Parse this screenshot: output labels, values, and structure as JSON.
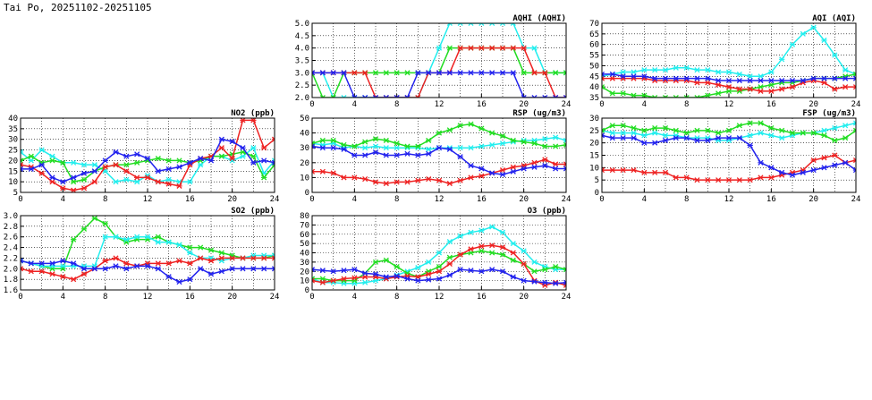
{
  "page": {
    "title": "Tai Po, 20251102-20251105"
  },
  "colors": {
    "red": "#ee2222",
    "green": "#22dd22",
    "blue": "#2222ee",
    "cyan": "#22eeee",
    "grid": "#000000"
  },
  "chart_data": [
    {
      "id": "aqhi",
      "type": "line",
      "title": "AQHI (AQHI)",
      "xlim": [
        0,
        24
      ],
      "ylim": [
        2,
        5
      ],
      "xticks": [
        "0",
        "4",
        "8",
        "12",
        "16",
        "20",
        "24"
      ],
      "yticks": [
        "2.0",
        "2.5",
        "3.0",
        "3.5",
        "4.0",
        "4.5",
        "5.0"
      ],
      "series": [
        {
          "color": "#22eeee",
          "values": [
            3,
            3,
            2,
            2,
            2,
            2,
            2,
            2,
            2,
            2,
            2,
            3,
            4,
            5,
            5,
            5,
            5,
            5,
            5,
            5,
            4,
            4,
            3,
            3,
            3
          ]
        },
        {
          "color": "#22dd22",
          "values": [
            3,
            2,
            2,
            3,
            3,
            3,
            3,
            3,
            3,
            3,
            3,
            3,
            3,
            4,
            4,
            4,
            4,
            4,
            4,
            4,
            3,
            3,
            3,
            3,
            3
          ]
        },
        {
          "color": "#ee2222",
          "values": [
            3,
            3,
            3,
            3,
            3,
            3,
            2,
            2,
            2,
            2,
            2,
            3,
            3,
            3,
            4,
            4,
            4,
            4,
            4,
            4,
            4,
            3,
            3,
            2,
            2
          ]
        },
        {
          "color": "#2222ee",
          "values": [
            3,
            3,
            3,
            3,
            2,
            2,
            2,
            2,
            2,
            2,
            3,
            3,
            3,
            3,
            3,
            3,
            3,
            3,
            3,
            3,
            2,
            2,
            2,
            2,
            2
          ]
        }
      ]
    },
    {
      "id": "aqi",
      "type": "line",
      "title": "AQI (AQI)",
      "xlim": [
        0,
        24
      ],
      "ylim": [
        35,
        70
      ],
      "xticks": [
        "0",
        "4",
        "8",
        "12",
        "16",
        "20",
        "24"
      ],
      "yticks": [
        "35",
        "40",
        "45",
        "50",
        "55",
        "60",
        "65",
        "70"
      ],
      "series": [
        {
          "color": "#22eeee",
          "values": [
            45,
            46,
            47,
            47,
            48,
            48,
            48,
            49,
            49,
            48,
            48,
            47,
            47,
            46,
            45,
            45,
            47,
            53,
            60,
            65,
            68,
            62,
            55,
            48,
            46
          ]
        },
        {
          "color": "#22dd22",
          "values": [
            40,
            37,
            37,
            36,
            36,
            35,
            35,
            35,
            35,
            35,
            36,
            37,
            38,
            38,
            39,
            40,
            41,
            42,
            42,
            43,
            44,
            44,
            44,
            45,
            46
          ]
        },
        {
          "color": "#ee2222",
          "values": [
            44,
            44,
            44,
            44,
            44,
            43,
            43,
            43,
            43,
            42,
            42,
            41,
            40,
            39,
            39,
            38,
            38,
            39,
            40,
            42,
            43,
            42,
            39,
            40,
            40
          ]
        },
        {
          "color": "#2222ee",
          "values": [
            46,
            46,
            45,
            45,
            45,
            44,
            44,
            44,
            44,
            44,
            44,
            43,
            43,
            43,
            43,
            43,
            43,
            43,
            43,
            43,
            44,
            44,
            44,
            44,
            44
          ]
        }
      ]
    },
    {
      "id": "no2",
      "type": "line",
      "title": "NO2 (ppb)",
      "xlim": [
        0,
        24
      ],
      "ylim": [
        5,
        40
      ],
      "xticks": [
        "0",
        "4",
        "8",
        "12",
        "16",
        "20",
        "24"
      ],
      "yticks": [
        "5",
        "10",
        "15",
        "20",
        "25",
        "30",
        "35",
        "40"
      ],
      "series": [
        {
          "color": "#22eeee",
          "values": [
            24,
            20,
            25,
            22,
            19,
            19,
            18,
            18,
            15,
            10,
            11,
            10,
            13,
            10,
            11,
            10,
            10,
            18,
            22,
            22,
            20,
            22,
            26,
            14,
            20
          ]
        },
        {
          "color": "#22dd22",
          "values": [
            20,
            22,
            19,
            20,
            19,
            10,
            11,
            15,
            17,
            18,
            18,
            19,
            20,
            21,
            20,
            20,
            19,
            20,
            22,
            22,
            23,
            24,
            22,
            12,
            18
          ]
        },
        {
          "color": "#ee2222",
          "values": [
            18,
            17,
            14,
            10,
            7,
            6,
            7,
            10,
            17,
            18,
            15,
            12,
            12,
            10,
            9,
            8,
            18,
            21,
            22,
            26,
            21,
            39,
            39,
            26,
            30
          ]
        },
        {
          "color": "#2222ee",
          "values": [
            16,
            16,
            18,
            12,
            10,
            12,
            14,
            15,
            20,
            24,
            22,
            23,
            21,
            15,
            16,
            17,
            19,
            21,
            20,
            30,
            29,
            26,
            19,
            20,
            19
          ]
        }
      ]
    },
    {
      "id": "rsp",
      "type": "line",
      "title": "RSP (ug/m3)",
      "xlim": [
        0,
        24
      ],
      "ylim": [
        0,
        50
      ],
      "xticks": [
        "0",
        "4",
        "8",
        "12",
        "16",
        "20",
        "24"
      ],
      "yticks": [
        "0",
        "10",
        "20",
        "30",
        "40",
        "50"
      ],
      "series": [
        {
          "color": "#22eeee",
          "values": [
            33,
            32,
            33,
            30,
            31,
            30,
            31,
            30,
            30,
            30,
            30,
            29,
            30,
            30,
            30,
            30,
            31,
            32,
            33,
            34,
            35,
            35,
            36,
            37,
            35
          ]
        },
        {
          "color": "#22dd22",
          "values": [
            33,
            35,
            35,
            32,
            31,
            34,
            36,
            35,
            33,
            31,
            31,
            35,
            40,
            42,
            45,
            46,
            43,
            40,
            38,
            35,
            34,
            33,
            31,
            31,
            32
          ]
        },
        {
          "color": "#ee2222",
          "values": [
            14,
            14,
            13,
            10,
            10,
            9,
            7,
            6,
            7,
            7,
            8,
            9,
            8,
            6,
            8,
            10,
            11,
            13,
            15,
            17,
            18,
            20,
            22,
            19,
            19
          ]
        },
        {
          "color": "#2222ee",
          "values": [
            31,
            30,
            30,
            29,
            25,
            25,
            27,
            25,
            25,
            26,
            25,
            26,
            30,
            29,
            24,
            18,
            16,
            13,
            12,
            14,
            16,
            17,
            18,
            16,
            16
          ]
        }
      ]
    },
    {
      "id": "fsp",
      "type": "line",
      "title": "FSP (ug/m3)",
      "xlim": [
        0,
        24
      ],
      "ylim": [
        0,
        30
      ],
      "xticks": [
        "0",
        "4",
        "8",
        "12",
        "16",
        "20",
        "24"
      ],
      "yticks": [
        "0",
        "5",
        "10",
        "15",
        "20",
        "25",
        "30"
      ],
      "series": [
        {
          "color": "#22eeee",
          "values": [
            25,
            24,
            24,
            24,
            23,
            24,
            23,
            23,
            22,
            22,
            22,
            21,
            21,
            22,
            23,
            24,
            23,
            22,
            23,
            24,
            24,
            25,
            26,
            27,
            28
          ]
        },
        {
          "color": "#22dd22",
          "values": [
            25,
            27,
            27,
            26,
            25,
            26,
            26,
            25,
            24,
            25,
            25,
            24,
            25,
            27,
            28,
            28,
            26,
            25,
            24,
            24,
            24,
            23,
            21,
            22,
            25
          ]
        },
        {
          "color": "#ee2222",
          "values": [
            9,
            9,
            9,
            9,
            8,
            8,
            8,
            6,
            6,
            5,
            5,
            5,
            5,
            5,
            5,
            6,
            6,
            7,
            8,
            9,
            13,
            14,
            15,
            12,
            13
          ]
        },
        {
          "color": "#2222ee",
          "values": [
            23,
            22,
            22,
            22,
            20,
            20,
            21,
            22,
            22,
            21,
            21,
            22,
            22,
            22,
            19,
            12,
            10,
            8,
            7,
            8,
            9,
            10,
            11,
            12,
            9
          ]
        }
      ]
    },
    {
      "id": "so2",
      "type": "line",
      "title": "SO2 (ppb)",
      "xlim": [
        0,
        24
      ],
      "ylim": [
        1.6,
        3.0
      ],
      "xticks": [
        "0",
        "4",
        "8",
        "12",
        "16",
        "20",
        "24"
      ],
      "yticks": [
        "1.6",
        "1.8",
        "2.0",
        "2.2",
        "2.4",
        "2.6",
        "2.8",
        "3.0"
      ],
      "series": [
        {
          "color": "#22dd22",
          "values": [
            2.15,
            2.1,
            2.05,
            2.0,
            2.0,
            2.55,
            2.75,
            2.95,
            2.85,
            2.6,
            2.5,
            2.55,
            2.55,
            2.6,
            2.5,
            2.45,
            2.4,
            2.4,
            2.35,
            2.3,
            2.25,
            2.2,
            2.2,
            2.2,
            2.25
          ]
        },
        {
          "color": "#22eeee",
          "values": [
            2.15,
            2.1,
            2.05,
            2.05,
            2.05,
            2.05,
            2.05,
            2.05,
            2.6,
            2.6,
            2.55,
            2.6,
            2.6,
            2.5,
            2.5,
            2.45,
            2.3,
            2.2,
            2.2,
            2.15,
            2.2,
            2.2,
            2.25,
            2.25,
            2.25
          ]
        },
        {
          "color": "#ee2222",
          "values": [
            2.0,
            1.95,
            1.95,
            1.9,
            1.85,
            1.8,
            1.9,
            2.0,
            2.15,
            2.2,
            2.1,
            2.05,
            2.1,
            2.1,
            2.1,
            2.15,
            2.1,
            2.2,
            2.15,
            2.2,
            2.2,
            2.2,
            2.2,
            2.2,
            2.2
          ]
        },
        {
          "color": "#2222ee",
          "values": [
            2.15,
            2.1,
            2.1,
            2.1,
            2.15,
            2.1,
            2.0,
            2.0,
            2.0,
            2.05,
            2.0,
            2.05,
            2.05,
            2.0,
            1.85,
            1.75,
            1.8,
            2.0,
            1.9,
            1.95,
            2.0,
            2.0,
            2.0,
            2.0,
            2.0
          ]
        }
      ]
    },
    {
      "id": "o3",
      "type": "line",
      "title": "O3 (ppb)",
      "xlim": [
        0,
        24
      ],
      "ylim": [
        0,
        80
      ],
      "xticks": [
        "0",
        "4",
        "8",
        "12",
        "16",
        "20",
        "24"
      ],
      "yticks": [
        "0",
        "10",
        "20",
        "30",
        "40",
        "50",
        "60",
        "70",
        "80"
      ],
      "series": [
        {
          "color": "#22eeee",
          "values": [
            12,
            8,
            8,
            7,
            7,
            8,
            10,
            12,
            16,
            20,
            24,
            30,
            40,
            52,
            58,
            62,
            64,
            68,
            62,
            50,
            42,
            30,
            25,
            22,
            22
          ]
        },
        {
          "color": "#22dd22",
          "values": [
            12,
            12,
            10,
            10,
            10,
            18,
            30,
            32,
            25,
            18,
            14,
            20,
            25,
            35,
            38,
            40,
            42,
            40,
            38,
            32,
            28,
            20,
            22,
            25,
            22
          ]
        },
        {
          "color": "#ee2222",
          "values": [
            10,
            8,
            10,
            12,
            13,
            14,
            14,
            12,
            14,
            15,
            14,
            17,
            20,
            28,
            38,
            44,
            47,
            48,
            46,
            40,
            28,
            10,
            5,
            8,
            5
          ]
        },
        {
          "color": "#2222ee",
          "values": [
            22,
            21,
            20,
            21,
            22,
            18,
            17,
            14,
            15,
            12,
            10,
            11,
            12,
            16,
            22,
            21,
            20,
            22,
            20,
            14,
            10,
            9,
            8,
            7,
            8
          ]
        }
      ]
    }
  ]
}
